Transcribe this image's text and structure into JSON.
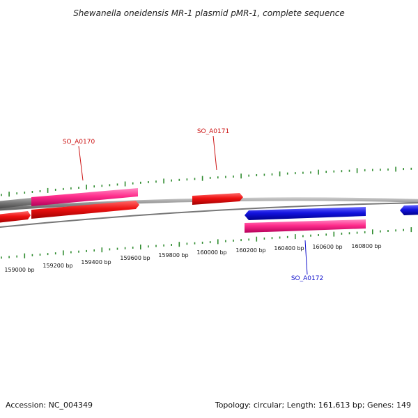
{
  "title": "Shewanella oneidensis MR-1 plasmid pMR-1, complete sequence",
  "footer": {
    "accession": "Accession: NC_004349",
    "summary": "Topology: circular; Length: 161,613 bp; Genes: 149"
  },
  "colors": {
    "backbone": "#8a8a8a",
    "tick": "#2e8b2e",
    "label_red": "#cc1111",
    "label_blue": "#1111cc",
    "gene_red": "#ee1111",
    "gene_pink": "#ff2d8c",
    "gene_blue": "#1414e0",
    "gene_gray": "#777777"
  },
  "ticks": {
    "labels": [
      "159000 bp",
      "159200 bp",
      "159400 bp",
      "159600 bp",
      "159800 bp",
      "160000 bp",
      "160200 bp",
      "160400 bp",
      "160600 bp",
      "160800 bp"
    ]
  },
  "gene_labels": [
    {
      "id": "SO_A0170",
      "color": "red"
    },
    {
      "id": "SO_A0171",
      "color": "red"
    },
    {
      "id": "SO_A0172",
      "color": "blue"
    }
  ],
  "genes": [
    {
      "name": "gene-gray-forward",
      "color": "gray"
    },
    {
      "name": "gene-pink-forward-1",
      "color": "pink"
    },
    {
      "name": "gene-red-reverse-1",
      "color": "red"
    },
    {
      "name": "gene-red-forward-1",
      "color": "red"
    },
    {
      "name": "gene-red-forward-2",
      "color": "red"
    },
    {
      "name": "gene-blue-reverse-1",
      "color": "blue"
    },
    {
      "name": "gene-pink-forward-2",
      "color": "pink"
    },
    {
      "name": "gene-blue-reverse-2",
      "color": "blue"
    }
  ]
}
